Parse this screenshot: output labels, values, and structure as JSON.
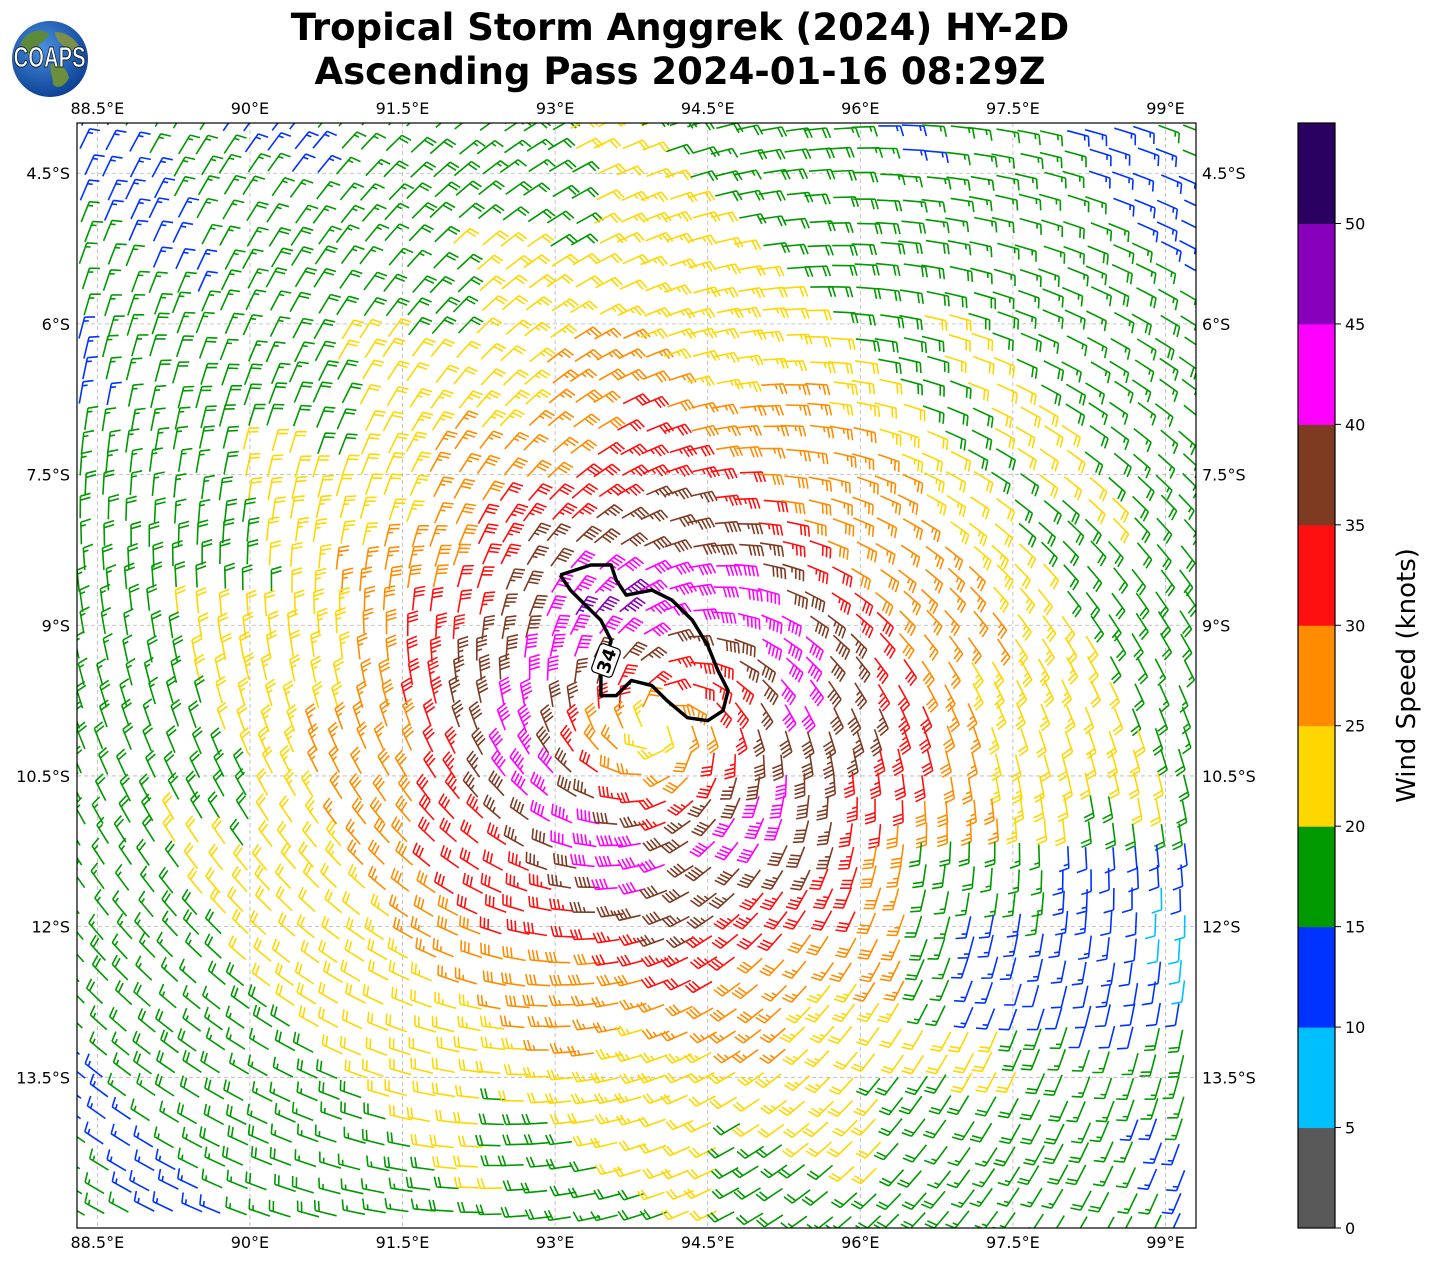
{
  "title": {
    "line1": "Tropical Storm Anggrek (2024) HY-2D",
    "line2": "Ascending Pass 2024-01-16 08:29Z"
  },
  "logo": {
    "text": "COAPS",
    "icon": "globe-icon"
  },
  "map": {
    "lon_range": [
      88.3,
      99.3
    ],
    "lat_range": [
      -15.0,
      -4.0
    ],
    "lon_ticks": [
      {
        "value": 88.5,
        "label": "88.5°E"
      },
      {
        "value": 90.0,
        "label": "90°E"
      },
      {
        "value": 91.5,
        "label": "91.5°E"
      },
      {
        "value": 93.0,
        "label": "93°E"
      },
      {
        "value": 94.5,
        "label": "94.5°E"
      },
      {
        "value": 96.0,
        "label": "96°E"
      },
      {
        "value": 97.5,
        "label": "97.5°E"
      },
      {
        "value": 99.0,
        "label": "99°E"
      }
    ],
    "lat_ticks": [
      {
        "value": -4.5,
        "label": "4.5°S"
      },
      {
        "value": -6.0,
        "label": "6°S"
      },
      {
        "value": -7.5,
        "label": "7.5°S"
      },
      {
        "value": -9.0,
        "label": "9°S"
      },
      {
        "value": -10.5,
        "label": "10.5°S"
      },
      {
        "value": -12.0,
        "label": "12°S"
      },
      {
        "value": -13.5,
        "label": "13.5°S"
      }
    ],
    "grid": true,
    "storm_center": {
      "lon": 94.05,
      "lat": -10.0
    },
    "contour": {
      "label": "34",
      "color": "#000000",
      "points": [
        [
          93.05,
          -8.5
        ],
        [
          93.2,
          -8.45
        ],
        [
          93.35,
          -8.4
        ],
        [
          93.55,
          -8.4
        ],
        [
          93.6,
          -8.55
        ],
        [
          93.7,
          -8.7
        ],
        [
          93.95,
          -8.65
        ],
        [
          94.15,
          -8.75
        ],
        [
          94.35,
          -8.95
        ],
        [
          94.5,
          -9.2
        ],
        [
          94.6,
          -9.45
        ],
        [
          94.7,
          -9.65
        ],
        [
          94.65,
          -9.85
        ],
        [
          94.5,
          -9.95
        ],
        [
          94.3,
          -9.92
        ],
        [
          94.1,
          -9.75
        ],
        [
          93.95,
          -9.6
        ],
        [
          93.75,
          -9.55
        ],
        [
          93.6,
          -9.7
        ],
        [
          93.45,
          -9.7
        ],
        [
          93.45,
          -9.5
        ],
        [
          93.5,
          -9.35
        ],
        [
          93.55,
          -9.15
        ],
        [
          93.45,
          -8.95
        ],
        [
          93.3,
          -8.8
        ],
        [
          93.15,
          -8.65
        ],
        [
          93.05,
          -8.5
        ]
      ]
    }
  },
  "colorbar": {
    "label": "Wind Speed (knots)",
    "bins": [
      {
        "min": 0,
        "max": 5,
        "color": "#595959"
      },
      {
        "min": 5,
        "max": 10,
        "color": "#00bfff"
      },
      {
        "min": 10,
        "max": 15,
        "color": "#0033ff"
      },
      {
        "min": 15,
        "max": 20,
        "color": "#009900"
      },
      {
        "min": 20,
        "max": 25,
        "color": "#ffd700"
      },
      {
        "min": 25,
        "max": 30,
        "color": "#ff8c00"
      },
      {
        "min": 30,
        "max": 35,
        "color": "#ff1010"
      },
      {
        "min": 35,
        "max": 40,
        "color": "#7f3a22"
      },
      {
        "min": 40,
        "max": 45,
        "color": "#ff00ff"
      },
      {
        "min": 45,
        "max": 50,
        "color": "#8800bb"
      },
      {
        "min": 50,
        "max": 55,
        "color": "#2a0060"
      }
    ],
    "ticks": [
      {
        "value": 0,
        "label": "0"
      },
      {
        "value": 5,
        "label": "5"
      },
      {
        "value": 10,
        "label": "10"
      },
      {
        "value": 15,
        "label": "15"
      },
      {
        "value": 20,
        "label": "20"
      },
      {
        "value": 25,
        "label": "25"
      },
      {
        "value": 30,
        "label": "30"
      },
      {
        "value": 35,
        "label": "35"
      },
      {
        "value": 40,
        "label": "40"
      },
      {
        "value": 45,
        "label": "45"
      },
      {
        "value": 50,
        "label": "50"
      }
    ]
  }
}
